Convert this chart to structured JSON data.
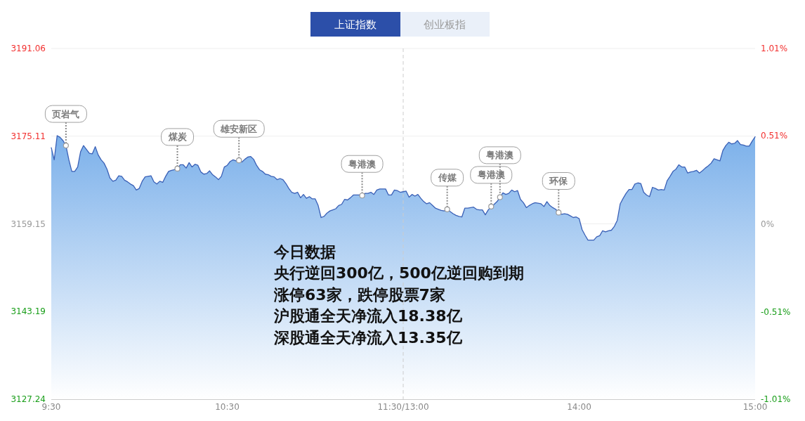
{
  "chart_data": {
    "type": "area",
    "title": "上证指数",
    "subtitle": "创业板指",
    "categories": [
      "9:30",
      null,
      null,
      null,
      null,
      null,
      null,
      null,
      null,
      null,
      null,
      null,
      null,
      null,
      null,
      null,
      null,
      null,
      null,
      null,
      null,
      null,
      null,
      null,
      null,
      null,
      null,
      null,
      null,
      null,
      null,
      null,
      null,
      null,
      null,
      null,
      null,
      null,
      null,
      null,
      null,
      null,
      null,
      null,
      null,
      null,
      null,
      null,
      null,
      null,
      null,
      null,
      null,
      null,
      null,
      null,
      null,
      null,
      null,
      null,
      "10:30",
      null,
      null,
      null,
      null,
      null,
      null,
      null,
      null,
      null,
      null,
      null,
      null,
      null,
      null,
      null,
      null,
      null,
      null,
      null,
      null,
      null,
      null,
      null,
      null,
      null,
      null,
      null,
      null,
      null,
      null,
      null,
      null,
      null,
      null,
      null,
      null,
      null,
      null,
      null,
      null,
      null,
      null,
      null,
      null,
      null,
      null,
      null,
      null,
      null,
      null,
      null,
      null,
      null,
      null,
      null,
      null,
      null,
      null,
      null,
      "11:30/13:00",
      null,
      null,
      null,
      null,
      null,
      null,
      null,
      null,
      null,
      null,
      null,
      null,
      null,
      null,
      null,
      null,
      null,
      null,
      null,
      null,
      null,
      null,
      null,
      null,
      null,
      null,
      null,
      null,
      null,
      null,
      null,
      null,
      null,
      null,
      null,
      null,
      null,
      null,
      null,
      null,
      null,
      null,
      null,
      null,
      null,
      null,
      null,
      null,
      null,
      null,
      null,
      null,
      null,
      null,
      null,
      null,
      null,
      null,
      null,
      "14:00",
      null,
      null,
      null,
      null,
      null,
      null,
      null,
      null,
      null,
      null,
      null,
      null,
      null,
      null,
      null,
      null,
      null,
      null,
      null,
      null,
      null,
      null,
      null,
      null,
      null,
      null,
      null,
      null,
      null,
      null,
      null,
      null,
      null,
      null,
      null,
      null,
      null,
      null,
      null,
      null,
      null,
      null,
      null,
      null,
      null,
      null,
      null,
      null,
      null,
      null,
      null,
      null,
      null,
      null,
      null,
      null,
      null,
      null,
      null,
      "15:00"
    ],
    "values": [
      3173.0,
      3170.8,
      3175.2,
      3174.9,
      3174.3,
      3173.4,
      3170.8,
      3168.7,
      3168.7,
      3169.5,
      3172.3,
      3173.4,
      3172.7,
      3172.0,
      3171.9,
      3173.2,
      3171.7,
      3170.8,
      3170.2,
      3169.1,
      3167.5,
      3166.9,
      3167.1,
      3167.9,
      3167.8,
      3167.1,
      3166.8,
      3166.4,
      3166.1,
      3165.3,
      3165.6,
      3166.9,
      3167.7,
      3167.8,
      3167.9,
      3166.8,
      3166.4,
      3166.9,
      3166.7,
      3167.8,
      3168.7,
      3168.9,
      3169.0,
      3169.2,
      3169.9,
      3169.9,
      3169.3,
      3170.3,
      3169.5,
      3170.0,
      3169.8,
      3168.6,
      3168.2,
      3168.3,
      3168.8,
      3168.1,
      3167.7,
      3167.2,
      3167.8,
      3169.5,
      3169.8,
      3170.5,
      3170.8,
      3170.6,
      3170.7,
      3170.4,
      3170.9,
      3171.3,
      3171.4,
      3170.9,
      3169.8,
      3169.0,
      3168.7,
      3168.2,
      3168.1,
      3167.8,
      3167.7,
      3167.2,
      3167.4,
      3167.2,
      3166.5,
      3165.6,
      3164.9,
      3164.7,
      3164.9,
      3163.9,
      3164.5,
      3163.8,
      3164.1,
      3163.7,
      3163.7,
      3162.5,
      3160.3,
      3160.5,
      3161.1,
      3161.5,
      3161.7,
      3161.9,
      3162.5,
      3162.7,
      3163.6,
      3163.5,
      3163.9,
      3164.4,
      3164.4,
      3164.4,
      3164.3,
      3164.7,
      3164.7,
      3164.9,
      3164.5,
      3165.3,
      3165.5,
      3165.5,
      3165.5,
      3164.4,
      3164.4,
      3165.3,
      3165.2,
      3164.9,
      3165.0,
      3165.1,
      3164.0,
      3164.5,
      3164.2,
      3164.5,
      3163.8,
      3163.2,
      3162.8,
      3163.0,
      3162.5,
      3162.0,
      3161.8,
      3161.6,
      3161.5,
      3161.8,
      3161.4,
      3161.0,
      3160.7,
      3160.5,
      3160.4,
      3162.0,
      3162.0,
      3162.1,
      3162.2,
      3161.8,
      3161.7,
      3161.7,
      3160.8,
      3161.7,
      3162.3,
      3162.7,
      3163.2,
      3164.0,
      3164.8,
      3164.5,
      3164.7,
      3165.3,
      3165.0,
      3165.2,
      3163.6,
      3163.0,
      3162.1,
      3162.5,
      3162.8,
      3163.0,
      3162.9,
      3162.8,
      3162.3,
      3163.2,
      3162.5,
      3162.1,
      3161.8,
      3161.2,
      3160.9,
      3161.0,
      3160.9,
      3160.6,
      3160.3,
      3160.4,
      3160.1,
      3158.1,
      3157.1,
      3156.2,
      3156.2,
      3156.2,
      3156.8,
      3157.0,
      3157.9,
      3157.7,
      3157.9,
      3158.0,
      3158.7,
      3159.8,
      3162.8,
      3163.8,
      3164.7,
      3165.4,
      3165.4,
      3166.4,
      3166.6,
      3166.5,
      3164.9,
      3164.4,
      3164.1,
      3165.8,
      3165.6,
      3165.3,
      3165.4,
      3165.3,
      3167.0,
      3167.8,
      3168.7,
      3169.1,
      3169.9,
      3169.5,
      3169.5,
      3168.4,
      3168.6,
      3168.7,
      3168.9,
      3168.4,
      3168.8,
      3169.3,
      3169.7,
      3170.2,
      3171.0,
      3170.8,
      3170.6,
      3172.5,
      3173.4,
      3174.0,
      3173.7,
      3173.8,
      3174.3,
      3173.6,
      3173.5,
      3173.3,
      3173.3,
      3174.2,
      3175.0
    ],
    "value_labels": [
      null,
      null,
      null,
      null,
      null,
      "页岩气",
      null,
      null,
      null,
      null,
      null,
      null,
      null,
      null,
      null,
      null,
      null,
      null,
      null,
      null,
      null,
      null,
      null,
      null,
      null,
      null,
      null,
      null,
      null,
      null,
      null,
      null,
      null,
      null,
      null,
      null,
      null,
      null,
      null,
      null,
      null,
      null,
      null,
      "煤炭",
      null,
      null,
      null,
      null,
      null,
      null,
      null,
      null,
      null,
      null,
      null,
      null,
      null,
      null,
      null,
      null,
      null,
      null,
      null,
      null,
      "雄安新区",
      null,
      null,
      null,
      null,
      null,
      null,
      null,
      null,
      null,
      null,
      null,
      null,
      null,
      null,
      null,
      null,
      null,
      null,
      null,
      null,
      null,
      null,
      null,
      null,
      null,
      null,
      null,
      null,
      null,
      null,
      null,
      null,
      null,
      null,
      null,
      null,
      null,
      null,
      null,
      null,
      null,
      "粤港澳",
      null,
      null,
      null,
      null,
      null,
      null,
      null,
      null,
      null,
      null,
      null,
      null,
      null,
      null,
      null,
      null,
      null,
      null,
      null,
      null,
      null,
      null,
      null,
      null,
      null,
      null,
      null,
      null,
      "传媒",
      null,
      null,
      null,
      null,
      null,
      null,
      null,
      null,
      null,
      null,
      null,
      null,
      null,
      null,
      "粤港澳",
      null,
      null,
      "粤港澳",
      null,
      null,
      null,
      null,
      null,
      null,
      null,
      null,
      null,
      null,
      null,
      null,
      null,
      null,
      null,
      null,
      null,
      null,
      null,
      "环保",
      null,
      null,
      null,
      null,
      null,
      null,
      null,
      null,
      null,
      null,
      null,
      null,
      null,
      null,
      null,
      null,
      null,
      null,
      null,
      null,
      null,
      null,
      null,
      null,
      null,
      null,
      null,
      null,
      null,
      null,
      null,
      null,
      null,
      null,
      null,
      null,
      null,
      null,
      null,
      null,
      null,
      null,
      null,
      null,
      null,
      null,
      null,
      null,
      null,
      null,
      null,
      null,
      null,
      null,
      null,
      null,
      null,
      null,
      null,
      null,
      null,
      null,
      null,
      null,
      null,
      null,
      null
    ],
    "color": "#7bb0ea",
    "ylim": [
      3127.24,
      3191.06
    ],
    "yticks": [
      3127.24,
      3143.19,
      3159.15,
      3175.11,
      3191.06
    ],
    "y2lim": [
      -1.01,
      1.01
    ],
    "y2ticks": [
      {
        "value": -1.01,
        "label": "-1.01%"
      },
      {
        "value": -0.51,
        "label": "-0.51%"
      },
      {
        "value": 0,
        "label": "0%"
      },
      {
        "value": 0.51,
        "label": "0.51%"
      },
      {
        "value": 1.01,
        "label": "1.01%"
      }
    ],
    "grid": "y",
    "ref_lines": [
      {
        "axis": "x",
        "value": "11:30/13:00",
        "line_style": "dashed",
        "color": "#cccccc"
      }
    ],
    "annotations": [
      "今日数据",
      "央行逆回300亿，500亿逆回购到期",
      "涨停63家，跌停股票7家",
      "沪股通全天净流入18.38亿",
      "深股通全天净流入13.35亿"
    ]
  }
}
